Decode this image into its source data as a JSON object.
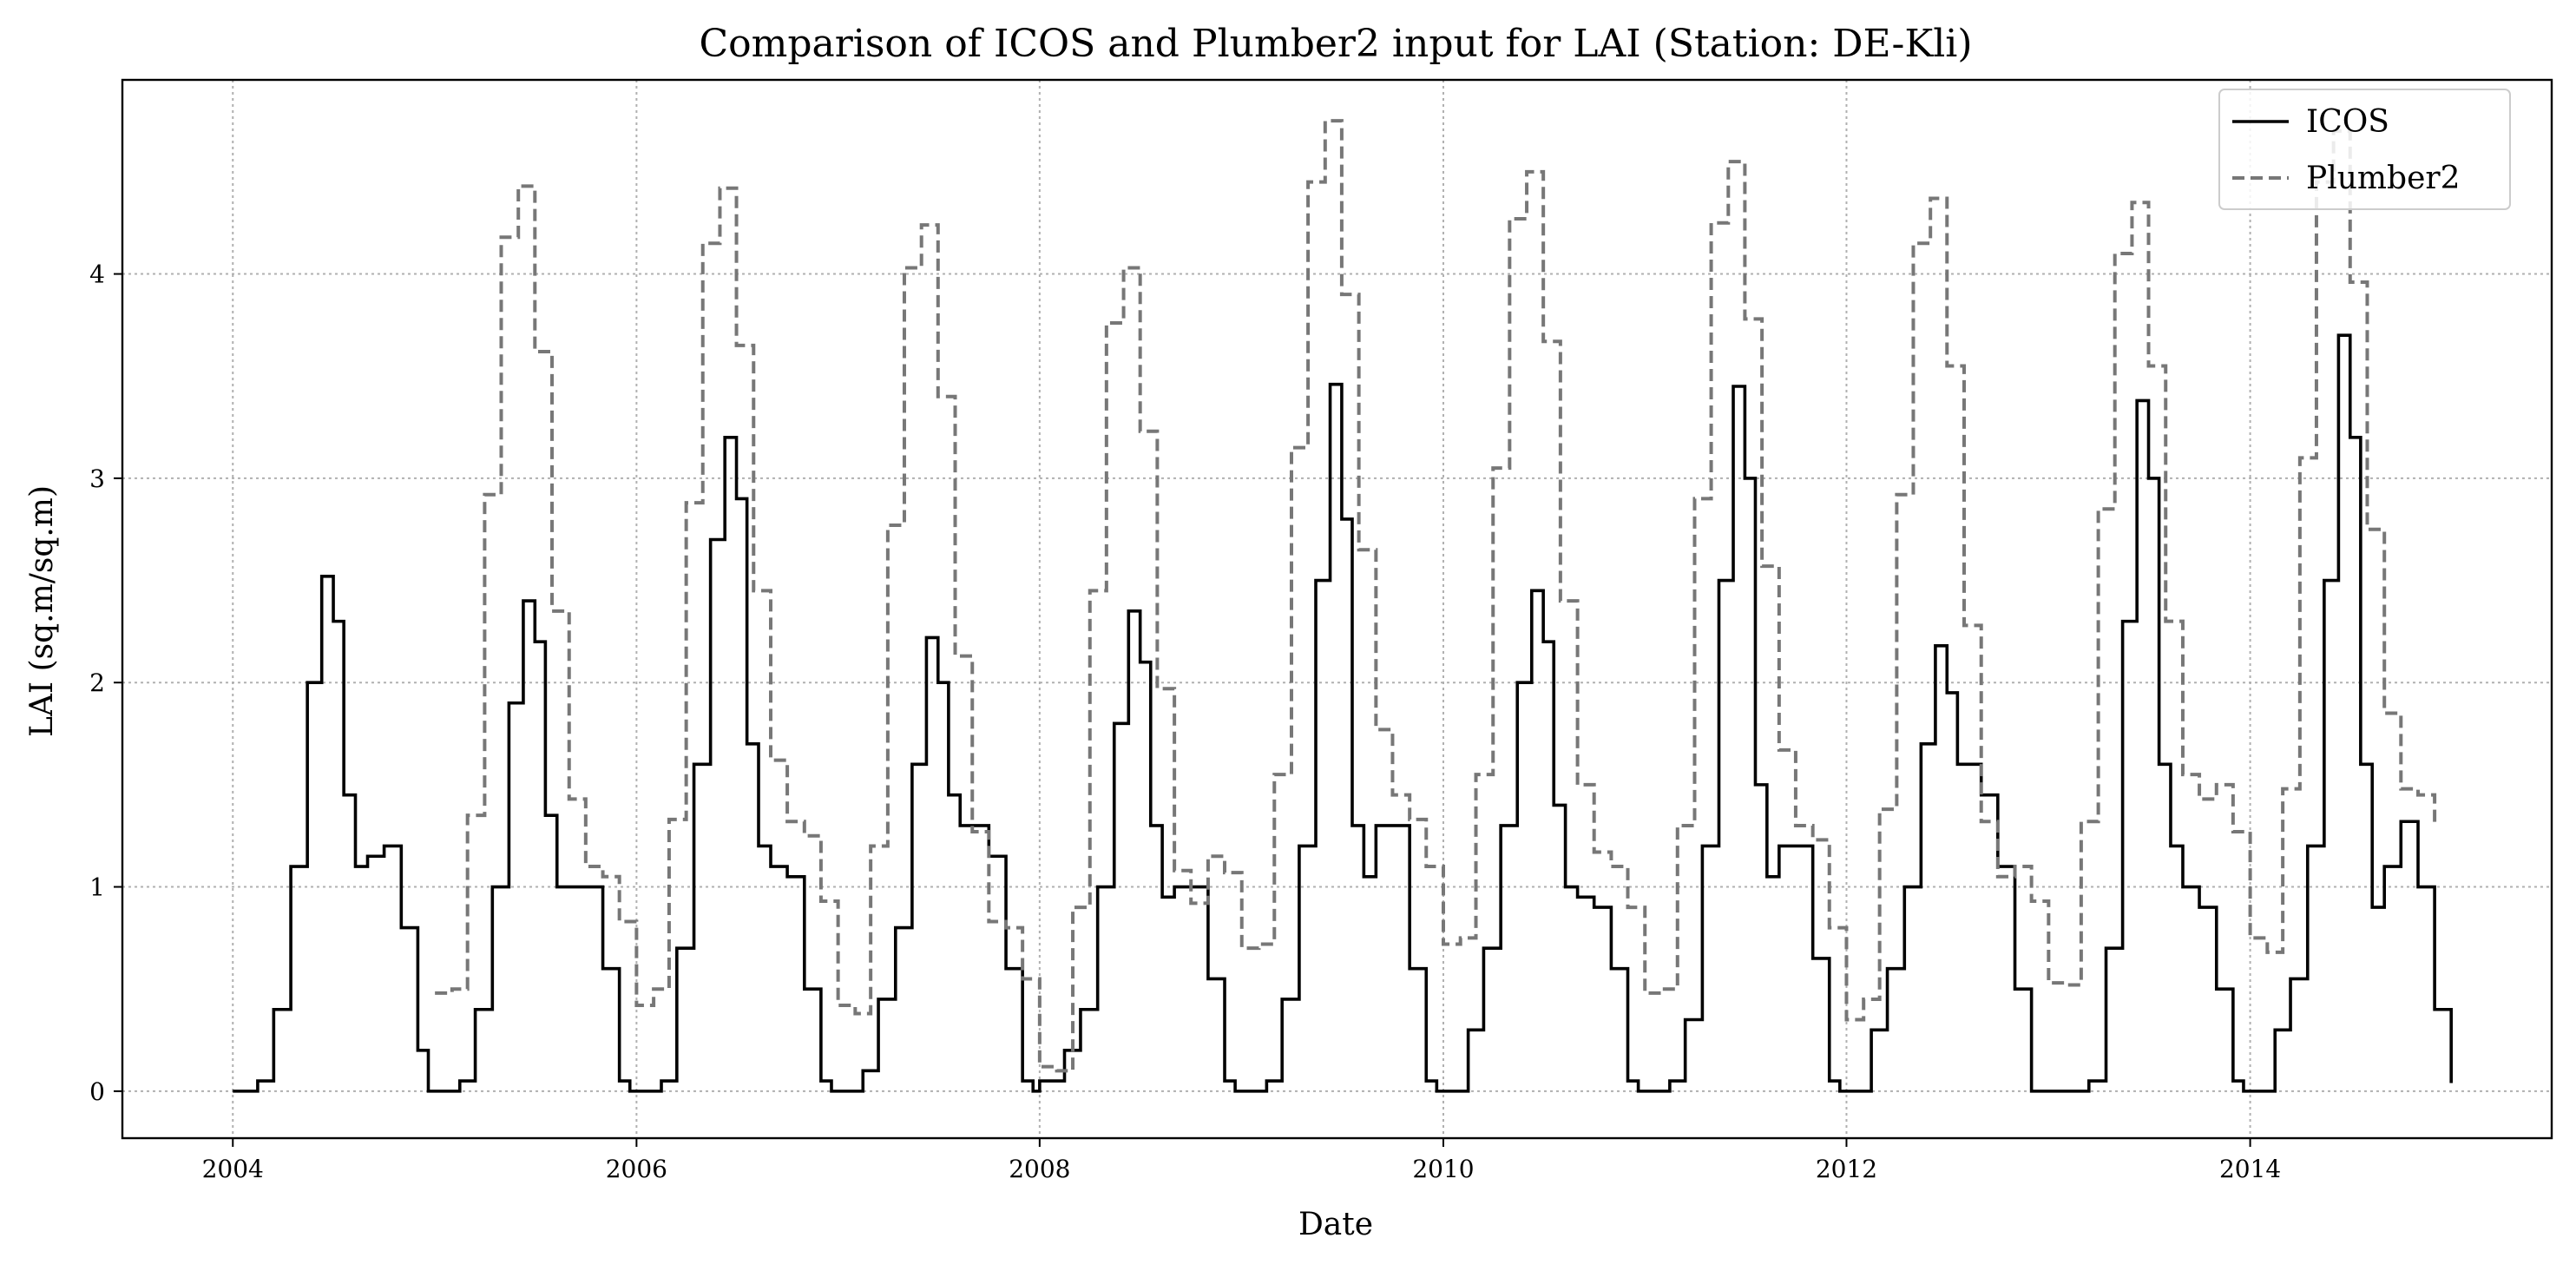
{
  "chart_data": {
    "type": "line",
    "title": "Comparison of ICOS and Plumber2 input for LAI (Station: DE-Kli)",
    "xlabel": "Date",
    "ylabel": "LAI (sq.m/sq.m)",
    "xlim": [
      "2003-06-15",
      "2015-07-01"
    ],
    "ylim": [
      -0.23,
      4.95
    ],
    "xticks": [
      "2004",
      "2006",
      "2008",
      "2010",
      "2012",
      "2014"
    ],
    "yticks": [
      "0",
      "1",
      "2",
      "3",
      "4"
    ],
    "grid": true,
    "legend_position": "top-right",
    "series": [
      {
        "name": "ICOS",
        "color": "#000000",
        "style": "solid",
        "x": [
          "2004-01-01",
          "2004-02-15",
          "2004-03-15",
          "2004-04-15",
          "2004-05-15",
          "2004-06-10",
          "2004-07-01",
          "2004-07-20",
          "2004-08-10",
          "2004-09-01",
          "2004-10-01",
          "2004-11-01",
          "2004-12-01",
          "2004-12-20",
          "2005-01-01",
          "2005-02-15",
          "2005-03-15",
          "2005-04-15",
          "2005-05-15",
          "2005-06-10",
          "2005-07-01",
          "2005-07-20",
          "2005-08-10",
          "2005-09-01",
          "2005-10-01",
          "2005-11-01",
          "2005-12-01",
          "2005-12-20",
          "2006-01-01",
          "2006-02-15",
          "2006-03-15",
          "2006-04-15",
          "2006-05-15",
          "2006-06-10",
          "2006-07-01",
          "2006-07-20",
          "2006-08-10",
          "2006-09-01",
          "2006-10-01",
          "2006-11-01",
          "2006-12-01",
          "2006-12-20",
          "2007-01-01",
          "2007-02-15",
          "2007-03-15",
          "2007-04-15",
          "2007-05-15",
          "2007-06-10",
          "2007-07-01",
          "2007-07-20",
          "2007-08-10",
          "2007-09-01",
          "2007-10-01",
          "2007-11-01",
          "2007-12-01",
          "2007-12-20",
          "2008-01-01",
          "2008-02-15",
          "2008-03-15",
          "2008-04-15",
          "2008-05-15",
          "2008-06-10",
          "2008-07-01",
          "2008-07-20",
          "2008-08-10",
          "2008-09-01",
          "2008-10-01",
          "2008-11-01",
          "2008-12-01",
          "2008-12-20",
          "2009-01-01",
          "2009-02-15",
          "2009-03-15",
          "2009-04-15",
          "2009-05-15",
          "2009-06-10",
          "2009-07-01",
          "2009-07-20",
          "2009-08-10",
          "2009-09-01",
          "2009-10-01",
          "2009-11-01",
          "2009-12-01",
          "2009-12-20",
          "2010-01-01",
          "2010-02-15",
          "2010-03-15",
          "2010-04-15",
          "2010-05-15",
          "2010-06-10",
          "2010-07-01",
          "2010-07-20",
          "2010-08-10",
          "2010-09-01",
          "2010-10-01",
          "2010-11-01",
          "2010-12-01",
          "2010-12-20",
          "2011-01-01",
          "2011-02-15",
          "2011-03-15",
          "2011-04-15",
          "2011-05-15",
          "2011-06-10",
          "2011-07-01",
          "2011-07-20",
          "2011-08-10",
          "2011-09-01",
          "2011-10-01",
          "2011-11-01",
          "2011-12-01",
          "2011-12-20",
          "2012-01-01",
          "2012-02-15",
          "2012-03-15",
          "2012-04-15",
          "2012-05-15",
          "2012-06-10",
          "2012-07-01",
          "2012-07-20",
          "2012-08-10",
          "2012-09-01",
          "2012-10-01",
          "2012-11-01",
          "2012-12-01",
          "2012-12-20",
          "2013-01-01",
          "2013-02-15",
          "2013-03-15",
          "2013-04-15",
          "2013-05-15",
          "2013-06-10",
          "2013-07-01",
          "2013-07-20",
          "2013-08-10",
          "2013-09-01",
          "2013-10-01",
          "2013-11-01",
          "2013-12-01",
          "2013-12-20",
          "2014-01-01",
          "2014-02-15",
          "2014-03-15",
          "2014-04-15",
          "2014-05-15",
          "2014-06-10",
          "2014-07-01",
          "2014-07-20",
          "2014-08-10",
          "2014-09-01",
          "2014-10-01",
          "2014-11-01",
          "2014-12-01",
          "2014-12-31"
        ],
        "y": [
          0,
          0.05,
          0.4,
          1.1,
          2.0,
          2.52,
          2.3,
          1.45,
          1.1,
          1.15,
          1.2,
          0.8,
          0.2,
          0,
          0,
          0.05,
          0.4,
          1.0,
          1.9,
          2.4,
          2.2,
          1.35,
          1.0,
          1.0,
          1.0,
          0.6,
          0.05,
          0,
          0,
          0.05,
          0.7,
          1.6,
          2.7,
          3.2,
          2.9,
          1.7,
          1.2,
          1.1,
          1.05,
          0.5,
          0.05,
          0,
          0,
          0.1,
          0.45,
          0.8,
          1.6,
          2.22,
          2.0,
          1.45,
          1.3,
          1.3,
          1.15,
          0.6,
          0.05,
          0,
          0.05,
          0.2,
          0.4,
          1.0,
          1.8,
          2.35,
          2.1,
          1.3,
          0.95,
          1.0,
          1.0,
          0.55,
          0.05,
          0,
          0,
          0.05,
          0.45,
          1.2,
          2.5,
          3.46,
          2.8,
          1.3,
          1.05,
          1.3,
          1.3,
          0.6,
          0.05,
          0,
          0,
          0.3,
          0.7,
          1.3,
          2.0,
          2.45,
          2.2,
          1.4,
          1.0,
          0.95,
          0.9,
          0.6,
          0.05,
          0,
          0,
          0.05,
          0.35,
          1.2,
          2.5,
          3.45,
          3.0,
          1.5,
          1.05,
          1.2,
          1.2,
          0.65,
          0.05,
          0,
          0,
          0.3,
          0.6,
          1.0,
          1.7,
          2.18,
          1.95,
          1.6,
          1.6,
          1.45,
          1.1,
          0.5,
          0,
          0,
          0,
          0,
          0.05,
          0.7,
          2.3,
          3.38,
          3.0,
          1.6,
          1.2,
          1.0,
          0.9,
          0.5,
          0.05,
          0,
          0,
          0.3,
          0.55,
          1.2,
          2.5,
          3.7,
          3.2,
          1.6,
          0.9,
          1.1,
          1.32,
          1.0,
          0.4,
          0.04
        ]
      },
      {
        "name": "Plumber2",
        "color": "#777777",
        "style": "dashed",
        "x": [
          "2005-01-01",
          "2005-02-01",
          "2005-03-01",
          "2005-04-01",
          "2005-05-01",
          "2005-06-01",
          "2005-07-01",
          "2005-08-01",
          "2005-09-01",
          "2005-10-01",
          "2005-11-01",
          "2005-12-01",
          "2006-01-01",
          "2006-02-01",
          "2006-03-01",
          "2006-04-01",
          "2006-05-01",
          "2006-06-01",
          "2006-07-01",
          "2006-08-01",
          "2006-09-01",
          "2006-10-01",
          "2006-11-01",
          "2006-12-01",
          "2007-01-01",
          "2007-02-01",
          "2007-03-01",
          "2007-04-01",
          "2007-05-01",
          "2007-06-01",
          "2007-07-01",
          "2007-08-01",
          "2007-09-01",
          "2007-10-01",
          "2007-11-01",
          "2007-12-01",
          "2008-01-01",
          "2008-02-01",
          "2008-03-01",
          "2008-04-01",
          "2008-05-01",
          "2008-06-01",
          "2008-07-01",
          "2008-08-01",
          "2008-09-01",
          "2008-10-01",
          "2008-11-01",
          "2008-12-01",
          "2009-01-01",
          "2009-02-01",
          "2009-03-01",
          "2009-04-01",
          "2009-05-01",
          "2009-06-01",
          "2009-07-01",
          "2009-08-01",
          "2009-09-01",
          "2009-10-01",
          "2009-11-01",
          "2009-12-01",
          "2010-01-01",
          "2010-02-01",
          "2010-03-01",
          "2010-04-01",
          "2010-05-01",
          "2010-06-01",
          "2010-07-01",
          "2010-08-01",
          "2010-09-01",
          "2010-10-01",
          "2010-11-01",
          "2010-12-01",
          "2011-01-01",
          "2011-02-01",
          "2011-03-01",
          "2011-04-01",
          "2011-05-01",
          "2011-06-01",
          "2011-07-01",
          "2011-08-01",
          "2011-09-01",
          "2011-10-01",
          "2011-11-01",
          "2011-12-01",
          "2012-01-01",
          "2012-02-01",
          "2012-03-01",
          "2012-04-01",
          "2012-05-01",
          "2012-06-01",
          "2012-07-01",
          "2012-08-01",
          "2012-09-01",
          "2012-10-01",
          "2012-11-01",
          "2012-12-01",
          "2013-01-01",
          "2013-02-01",
          "2013-03-01",
          "2013-04-01",
          "2013-05-01",
          "2013-06-01",
          "2013-07-01",
          "2013-08-01",
          "2013-09-01",
          "2013-10-01",
          "2013-11-01",
          "2013-12-01",
          "2014-01-01",
          "2014-02-01",
          "2014-03-01",
          "2014-04-01",
          "2014-05-01",
          "2014-06-01",
          "2014-07-01",
          "2014-08-01",
          "2014-09-01",
          "2014-10-01",
          "2014-11-01",
          "2014-12-01"
        ],
        "y": [
          0.48,
          0.5,
          1.35,
          2.92,
          4.18,
          4.43,
          3.62,
          2.35,
          1.43,
          1.1,
          1.05,
          0.83,
          0.42,
          0.5,
          1.33,
          2.88,
          4.15,
          4.42,
          3.65,
          2.45,
          1.62,
          1.32,
          1.25,
          0.93,
          0.42,
          0.38,
          1.2,
          2.77,
          4.03,
          4.24,
          3.4,
          2.13,
          1.27,
          0.83,
          0.8,
          0.55,
          0.12,
          0.1,
          0.9,
          2.45,
          3.76,
          4.03,
          3.23,
          1.97,
          1.08,
          0.92,
          1.15,
          1.07,
          0.7,
          0.72,
          1.55,
          3.15,
          4.45,
          4.75,
          3.9,
          2.65,
          1.77,
          1.45,
          1.33,
          1.1,
          0.72,
          0.75,
          1.55,
          3.05,
          4.27,
          4.5,
          3.67,
          2.4,
          1.5,
          1.17,
          1.1,
          0.9,
          0.48,
          0.5,
          1.3,
          2.9,
          4.25,
          4.55,
          3.78,
          2.57,
          1.67,
          1.3,
          1.23,
          0.8,
          0.35,
          0.45,
          1.38,
          2.92,
          4.15,
          4.37,
          3.55,
          2.28,
          1.32,
          1.05,
          1.1,
          0.93,
          0.53,
          0.52,
          1.32,
          2.85,
          4.1,
          4.35,
          3.55,
          2.3,
          1.55,
          1.43,
          1.5,
          1.27,
          0.75,
          0.68,
          1.48,
          3.1,
          4.45,
          4.7,
          3.96,
          2.75,
          1.85,
          1.48,
          1.45,
          1.3
        ]
      }
    ]
  }
}
